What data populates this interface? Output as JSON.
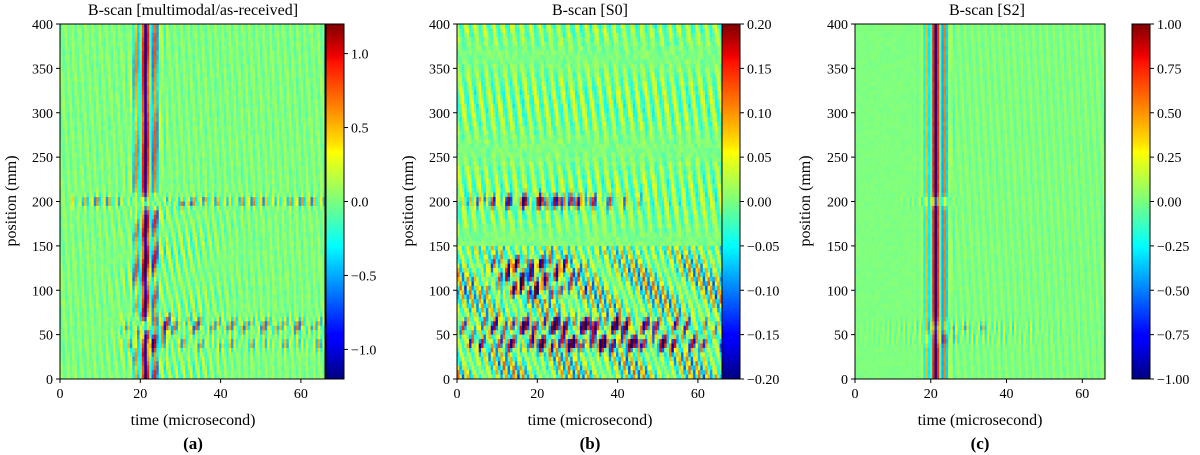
{
  "chart_data": [
    {
      "type": "heatmap",
      "title": "B-scan [multimodal/as-received]",
      "xlabel": "time (microsecond)",
      "ylabel": "position (mm)",
      "xlim": [
        0,
        66
      ],
      "ylim": [
        0,
        400
      ],
      "xticks": [
        0,
        20,
        40,
        60
      ],
      "yticks": [
        0,
        50,
        100,
        150,
        200,
        250,
        300,
        350,
        400
      ],
      "colorbar": {
        "range": [
          -1.2,
          1.2
        ],
        "ticks": [
          -1.0,
          -0.5,
          0.0,
          0.5,
          1.0
        ],
        "tick_labels": [
          "−1.0",
          "−0.5",
          "0.0",
          "0.5",
          "1.0"
        ],
        "colormap": "jet"
      },
      "panel_label": "(a)",
      "features": {
        "main_pulse_time_us": [
          18,
          25
        ],
        "main_pulse_positions_mm": [
          0,
          400
        ],
        "reflector_positions_mm": [
          200,
          60,
          40
        ],
        "disturbed_region_mm": [
          0,
          200
        ]
      }
    },
    {
      "type": "heatmap",
      "title": "B-scan [S0]",
      "xlabel": "time (microsecond)",
      "ylabel": "position (mm)",
      "xlim": [
        0,
        66
      ],
      "ylim": [
        0,
        400
      ],
      "xticks": [
        0,
        20,
        40,
        60
      ],
      "yticks": [
        0,
        50,
        100,
        150,
        200,
        250,
        300,
        350,
        400
      ],
      "colorbar": {
        "range": [
          -0.2,
          0.2
        ],
        "ticks": [
          -0.2,
          -0.15,
          -0.1,
          -0.05,
          0.0,
          0.05,
          0.1,
          0.15,
          0.2
        ],
        "tick_labels": [
          "−0.20",
          "−0.15",
          "−0.10",
          "−0.05",
          "0.00",
          "0.05",
          "0.10",
          "0.15",
          "0.20"
        ],
        "colormap": "jet"
      },
      "panel_label": "(b)",
      "features": {
        "reflector_bands_mm": [
          200,
          130,
          115,
          100,
          60,
          40
        ],
        "reflector_time_us": [
          5,
          66
        ]
      }
    },
    {
      "type": "heatmap",
      "title": "B-scan [S2]",
      "xlabel": "time (microsecond)",
      "ylabel": "position (mm)",
      "xlim": [
        0,
        66
      ],
      "ylim": [
        0,
        400
      ],
      "xticks": [
        0,
        20,
        40,
        60
      ],
      "yticks": [
        0,
        50,
        100,
        150,
        200,
        250,
        300,
        350,
        400
      ],
      "colorbar": {
        "range": [
          -1.0,
          1.0
        ],
        "ticks": [
          -1.0,
          -0.75,
          -0.5,
          -0.25,
          0.0,
          0.25,
          0.5,
          0.75,
          1.0
        ],
        "tick_labels": [
          "−1.00",
          "−0.75",
          "−0.50",
          "−0.25",
          "0.00",
          "0.25",
          "0.50",
          "0.75",
          "1.00"
        ],
        "colormap": "jet"
      },
      "panel_label": "(c)",
      "features": {
        "main_pulse_time_us": [
          18,
          25
        ],
        "main_pulse_positions_mm": [
          0,
          400
        ],
        "reflector_positions_mm": [
          200,
          60,
          45
        ]
      }
    }
  ]
}
